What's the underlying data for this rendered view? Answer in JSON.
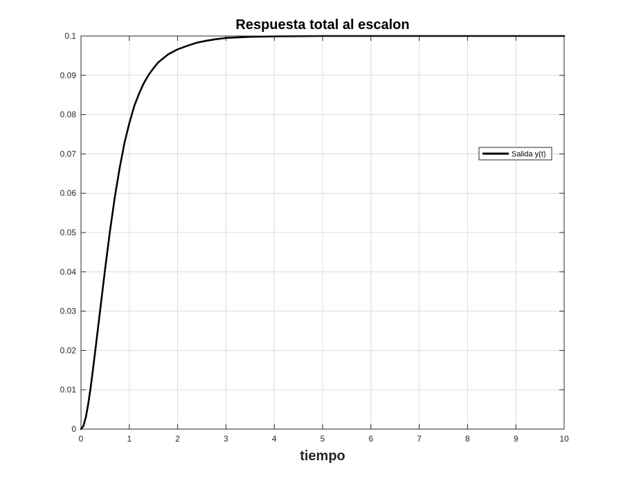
{
  "chart_data": {
    "type": "line",
    "title": "Respuesta total al escalon",
    "xlabel": "tiempo",
    "ylabel": "",
    "xlim": [
      0,
      10
    ],
    "ylim": [
      0,
      0.1
    ],
    "xticks": [
      "0",
      "1",
      "2",
      "3",
      "4",
      "5",
      "6",
      "7",
      "8",
      "9",
      "10"
    ],
    "yticks": [
      "0",
      "0.01",
      "0.02",
      "0.03",
      "0.04",
      "0.05",
      "0.06",
      "0.07",
      "0.08",
      "0.09",
      "0.1"
    ],
    "grid": true,
    "legend": {
      "placement": "right",
      "entries": [
        "Salida y(t)"
      ]
    },
    "series": [
      {
        "name": "Salida y(t)",
        "color": "#000000",
        "x": [
          0,
          0.05,
          0.1,
          0.15,
          0.2,
          0.25,
          0.3,
          0.4,
          0.5,
          0.6,
          0.7,
          0.8,
          0.9,
          1.0,
          1.1,
          1.2,
          1.3,
          1.4,
          1.5,
          1.6,
          1.8,
          2.0,
          2.2,
          2.4,
          2.6,
          2.8,
          3.0,
          3.5,
          4.0,
          5.0,
          6.0,
          7.0,
          8.0,
          9.0,
          10.0
        ],
        "y": [
          0,
          0.0008,
          0.003,
          0.0064,
          0.0106,
          0.0154,
          0.0204,
          0.0306,
          0.0408,
          0.0504,
          0.059,
          0.0664,
          0.0728,
          0.0778,
          0.0821,
          0.0853,
          0.088,
          0.0901,
          0.0918,
          0.0933,
          0.0953,
          0.0966,
          0.0975,
          0.0983,
          0.0988,
          0.0992,
          0.0995,
          0.0998,
          0.0999,
          0.1,
          0.1,
          0.1,
          0.1,
          0.1,
          0.1
        ]
      }
    ]
  }
}
